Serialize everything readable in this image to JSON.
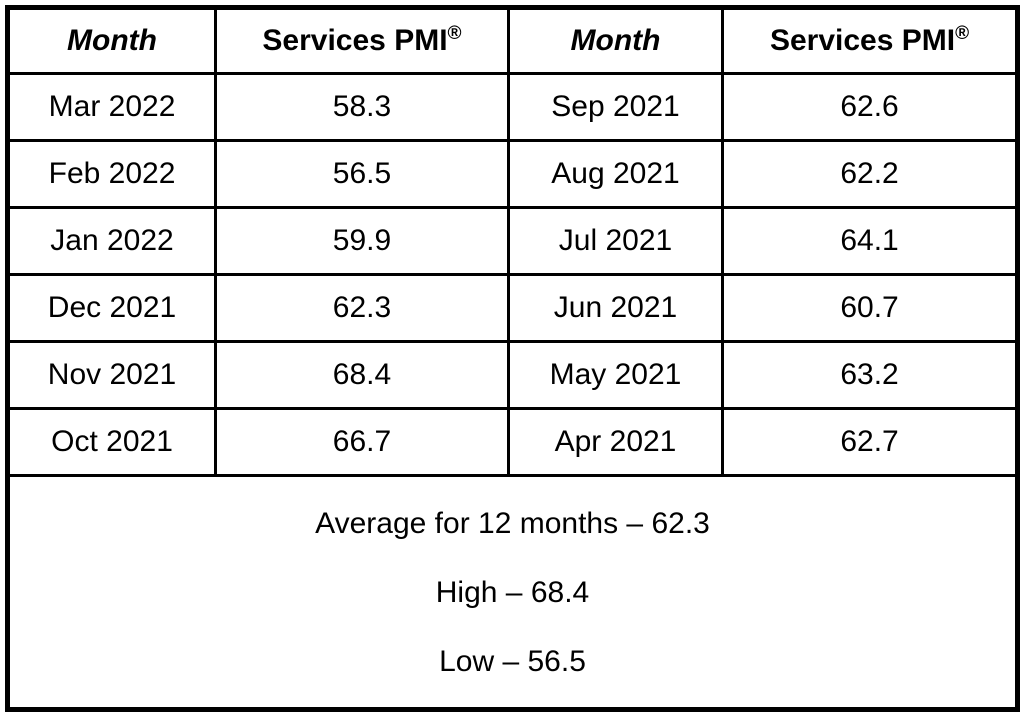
{
  "chart_data": {
    "type": "table",
    "columns": [
      "Month",
      "Services PMI®",
      "Month",
      "Services PMI®"
    ],
    "rows": [
      [
        "Mar 2022",
        "58.3",
        "Sep 2021",
        "62.6"
      ],
      [
        "Feb 2022",
        "56.5",
        "Aug 2021",
        "62.2"
      ],
      [
        "Jan 2022",
        "59.9",
        "Jul 2021",
        "64.1"
      ],
      [
        "Dec 2021",
        "62.3",
        "Jun 2021",
        "60.7"
      ],
      [
        "Nov 2021",
        "68.4",
        "May 2021",
        "63.2"
      ],
      [
        "Oct 2021",
        "66.7",
        "Apr 2021",
        "62.7"
      ]
    ],
    "summary_rows": [
      "Average for 12 months – 62.3",
      "High – 68.4",
      "Low – 56.5"
    ],
    "summary_values": {
      "average_12_months": 62.3,
      "high": 68.4,
      "low": 56.5
    },
    "layout": {
      "grid": "on",
      "panels": "two month/value column pairs side by side",
      "summary_position": "bottom, spans all columns"
    }
  },
  "header": {
    "month": "Month",
    "pmi": "Services PMI",
    "registered_mark": "®"
  },
  "colors": {
    "background": "#ffffff",
    "border": "#000000",
    "text": "#000000"
  }
}
